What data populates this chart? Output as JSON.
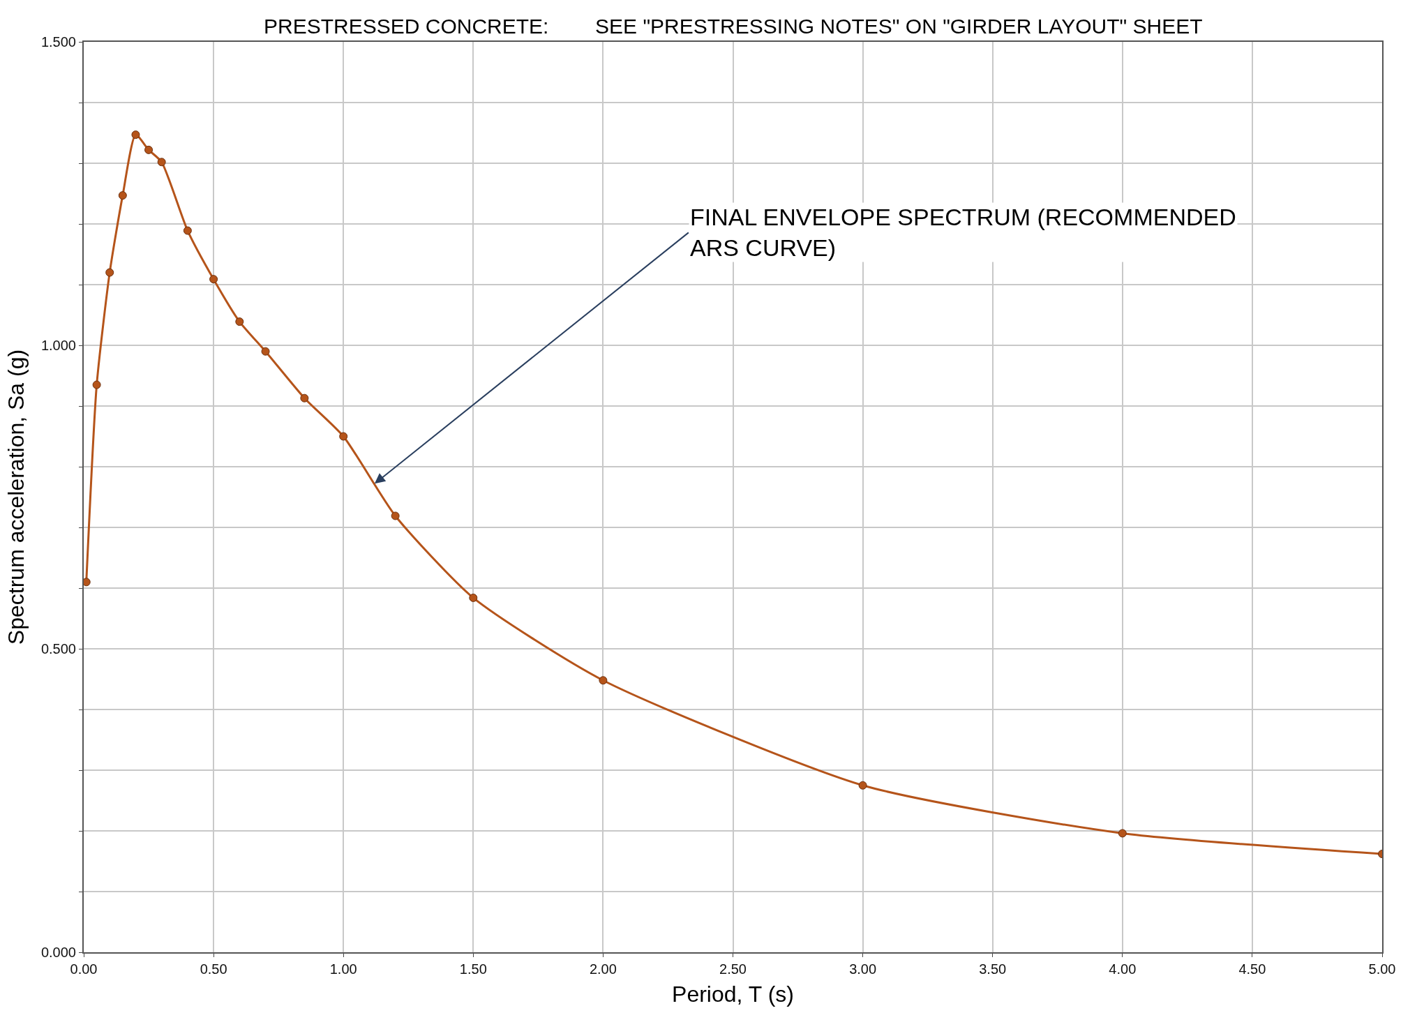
{
  "chart_data": {
    "type": "line",
    "xlabel": "Period, T (s)",
    "ylabel": "Spectrum acceleration, Sa (g)",
    "x": [
      0.01,
      0.05,
      0.1,
      0.15,
      0.2,
      0.25,
      0.3,
      0.4,
      0.5,
      0.6,
      0.7,
      0.85,
      1.0,
      1.2,
      1.5,
      2.0,
      3.0,
      4.0,
      5.0
    ],
    "series": [
      {
        "color": "#b5541a",
        "values": [
          0.61,
          0.935,
          1.12,
          1.247,
          1.347,
          1.322,
          1.302,
          1.189,
          1.109,
          1.039,
          0.99,
          0.913,
          0.85,
          0.719,
          0.584,
          0.448,
          0.275,
          0.196,
          0.162
        ]
      }
    ],
    "xlim": [
      0,
      5
    ],
    "ylim": [
      0,
      1.5
    ],
    "xticks": [
      {
        "value": 0,
        "label": "0.00"
      },
      {
        "value": 0.5,
        "label": "0.50"
      },
      {
        "value": 1,
        "label": "1.00"
      },
      {
        "value": 1.5,
        "label": "1.50"
      },
      {
        "value": 2,
        "label": "2.00"
      },
      {
        "value": 2.5,
        "label": "2.50"
      },
      {
        "value": 3,
        "label": "3.00"
      },
      {
        "value": 3.5,
        "label": "3.50"
      },
      {
        "value": 4,
        "label": "4.00"
      },
      {
        "value": 4.5,
        "label": "4.50"
      },
      {
        "value": 5,
        "label": "5.00"
      }
    ],
    "yticks": [
      {
        "value": 0,
        "label": "0.000"
      },
      {
        "value": 0.1,
        "label": null
      },
      {
        "value": 0.2,
        "label": null
      },
      {
        "value": 0.3,
        "label": null
      },
      {
        "value": 0.4,
        "label": null
      },
      {
        "value": 0.5,
        "label": "0.500"
      },
      {
        "value": 0.6,
        "label": null
      },
      {
        "value": 0.7,
        "label": null
      },
      {
        "value": 0.8,
        "label": null
      },
      {
        "value": 0.9,
        "label": null
      },
      {
        "value": 1,
        "label": "1.000"
      },
      {
        "value": 1.1,
        "label": null
      },
      {
        "value": 1.2,
        "label": null
      },
      {
        "value": 1.3,
        "label": null
      },
      {
        "value": 1.4,
        "label": null
      },
      {
        "value": 1.5,
        "label": "1.500"
      }
    ],
    "grid": true,
    "marker": "circle",
    "line_style": "solid",
    "annotations": [
      "PRESTRESSED CONCRETE:        SEE \"PRESTRESSING NOTES\" ON \"GIRDER LAYOUT\" SHEET",
      {
        "text": "FINAL ENVELOPE SPECTRUM (RECOMMENDED\nARS CURVE)",
        "x": 1.12,
        "y": 0.772
      }
    ]
  }
}
